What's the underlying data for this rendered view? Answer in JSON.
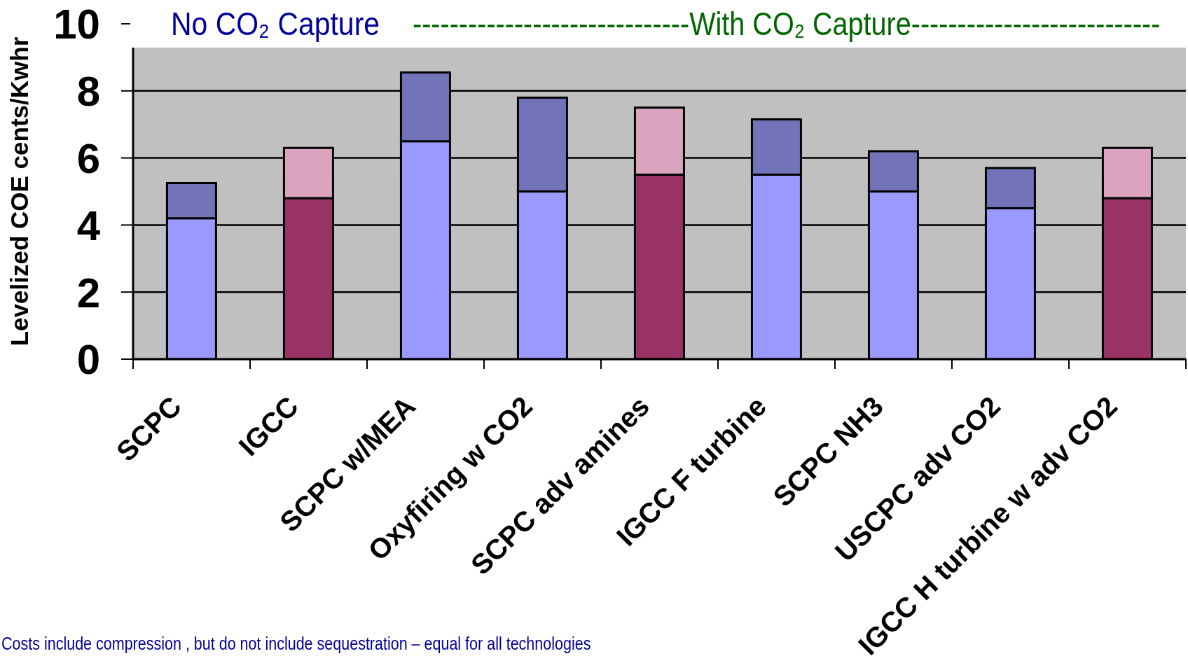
{
  "chart_data": {
    "type": "bar",
    "stacked": true,
    "categories": [
      "SCPC",
      "IGCC",
      "SCPC w/MEA",
      "Oxyfiring w CO2",
      "SCPC adv amines",
      "IGCC F turbine",
      "SCPC NH3",
      "USCPC adv CO2",
      "IGCC H turbine w adv CO2"
    ],
    "series": [
      {
        "values": [
          4.2,
          4.8,
          6.5,
          5.0,
          5.5,
          5.5,
          5.0,
          4.5,
          4.8
        ],
        "colors": [
          "#9999ff",
          "#993366",
          "#9999ff",
          "#9999ff",
          "#993366",
          "#9999ff",
          "#9999ff",
          "#9999ff",
          "#993366"
        ]
      },
      {
        "values": [
          1.05,
          1.5,
          2.05,
          2.8,
          2.0,
          1.65,
          1.2,
          1.2,
          1.5
        ],
        "colors": [
          "#7373b9",
          "#dba3bd",
          "#7373b9",
          "#7373b9",
          "#dba3bd",
          "#7373b9",
          "#7373b9",
          "#7373b9",
          "#dba3bd"
        ]
      }
    ],
    "ylabel": "Levelized COE cents/Kwhr",
    "ylim": [
      0,
      10
    ],
    "yticks": [
      0,
      2,
      4,
      6,
      8,
      10
    ],
    "grid": "y",
    "annotations": [
      "No CO₂ Capture",
      "------------------------------With CO₂ Capture---------------------------",
      "Costs include compression , but do not include sequestration – equal for all technologies"
    ]
  }
}
